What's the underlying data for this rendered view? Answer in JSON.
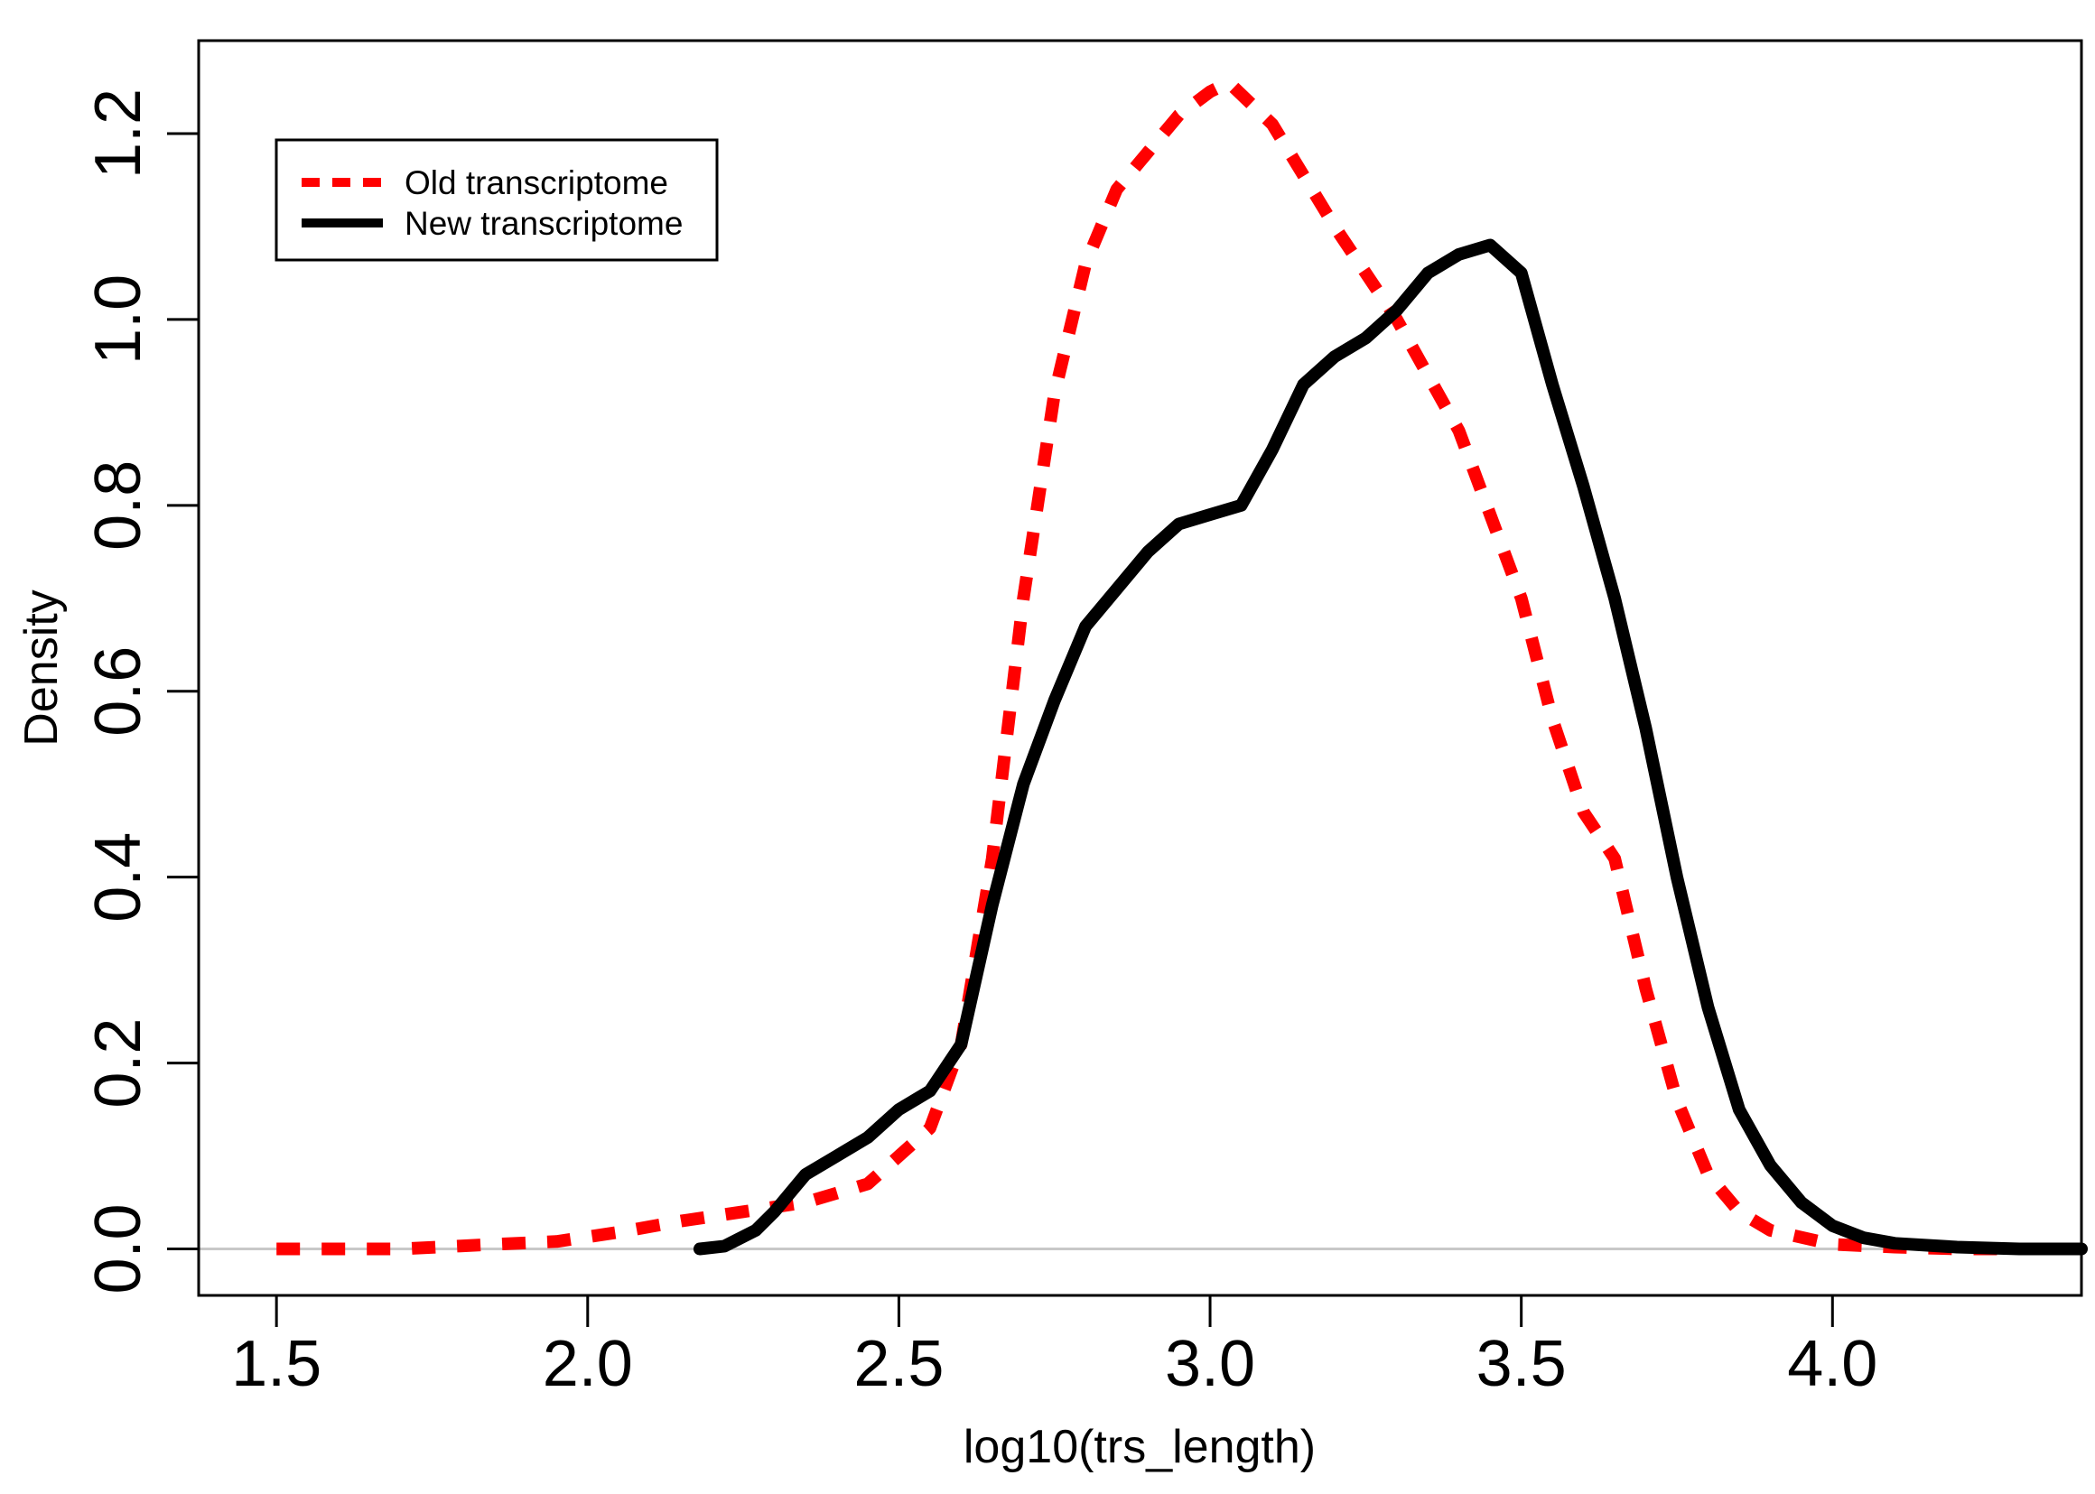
{
  "chart_data": {
    "type": "line",
    "title": "",
    "xlabel": "log10(trs_length)",
    "ylabel": "Density",
    "xlim": [
      1.375,
      4.4
    ],
    "ylim": [
      -0.05,
      1.3
    ],
    "xticks": [
      1.5,
      2.0,
      2.5,
      3.0,
      3.5,
      4.0
    ],
    "xtick_labels": [
      "1.5",
      "2.0",
      "2.5",
      "3.0",
      "3.5",
      "4.0"
    ],
    "yticks": [
      0.0,
      0.2,
      0.4,
      0.6,
      0.8,
      1.0,
      1.2
    ],
    "ytick_labels": [
      "0.0",
      "0.2",
      "0.4",
      "0.6",
      "0.8",
      "1.0",
      "1.2"
    ],
    "baseline": 0,
    "legend_position": "top-left",
    "series": [
      {
        "name": "Old transcriptome",
        "color": "#ff0000",
        "style": "dashed",
        "x": [
          1.5,
          1.7,
          1.85,
          1.95,
          2.05,
          2.15,
          2.25,
          2.35,
          2.45,
          2.55,
          2.6,
          2.65,
          2.7,
          2.75,
          2.8,
          2.85,
          2.9,
          2.95,
          3.0,
          3.03,
          3.1,
          3.2,
          3.3,
          3.4,
          3.5,
          3.55,
          3.6,
          3.65,
          3.7,
          3.75,
          3.8,
          3.85,
          3.9,
          4.0,
          4.1,
          4.2,
          4.3,
          4.4
        ],
        "y": [
          0.0,
          0.0,
          0.005,
          0.008,
          0.018,
          0.03,
          0.04,
          0.05,
          0.07,
          0.13,
          0.22,
          0.42,
          0.7,
          0.92,
          1.06,
          1.14,
          1.18,
          1.22,
          1.245,
          1.255,
          1.21,
          1.1,
          1.0,
          0.88,
          0.7,
          0.57,
          0.47,
          0.42,
          0.28,
          0.16,
          0.08,
          0.04,
          0.02,
          0.005,
          0.002,
          0.0,
          0.0,
          0.0
        ]
      },
      {
        "name": "New transcriptome",
        "color": "#000000",
        "style": "solid",
        "x": [
          2.18,
          2.22,
          2.27,
          2.3,
          2.35,
          2.4,
          2.45,
          2.5,
          2.55,
          2.6,
          2.65,
          2.7,
          2.75,
          2.8,
          2.85,
          2.9,
          2.95,
          3.0,
          3.05,
          3.1,
          3.15,
          3.2,
          3.25,
          3.3,
          3.35,
          3.4,
          3.45,
          3.5,
          3.55,
          3.6,
          3.65,
          3.7,
          3.75,
          3.8,
          3.85,
          3.9,
          3.95,
          4.0,
          4.05,
          4.1,
          4.2,
          4.3,
          4.4
        ],
        "y": [
          0.0,
          0.003,
          0.02,
          0.04,
          0.08,
          0.1,
          0.12,
          0.15,
          0.17,
          0.22,
          0.37,
          0.5,
          0.59,
          0.67,
          0.71,
          0.75,
          0.78,
          0.79,
          0.8,
          0.86,
          0.93,
          0.96,
          0.98,
          1.01,
          1.05,
          1.07,
          1.08,
          1.05,
          0.93,
          0.82,
          0.7,
          0.56,
          0.4,
          0.26,
          0.15,
          0.09,
          0.05,
          0.025,
          0.012,
          0.006,
          0.002,
          0.0,
          0.0
        ]
      }
    ]
  }
}
